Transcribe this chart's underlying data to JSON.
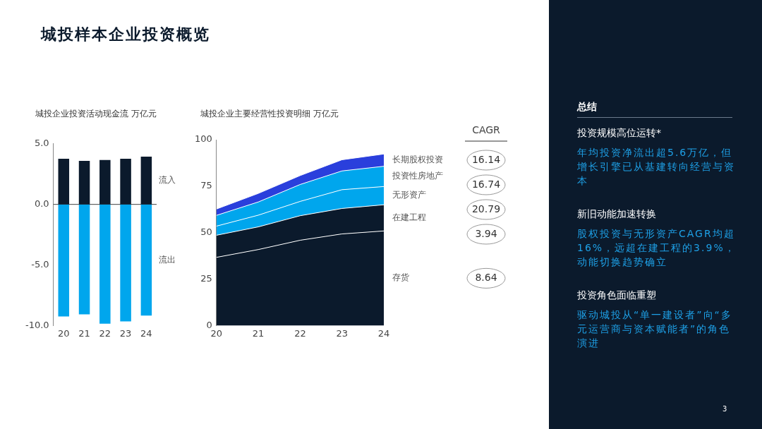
{
  "chart_data": [
    {
      "type": "other",
      "title": "城投样本企业投资概览"
    },
    {
      "type": "bar",
      "title": "城投企业投资活动现金流 万亿元",
      "stacked": true,
      "categories": [
        "20",
        "21",
        "22",
        "23",
        "24"
      ],
      "series": [
        {
          "name": "流入",
          "color": "#0b1a2c",
          "values": [
            3.77,
            3.59,
            3.67,
            3.77,
            3.94
          ]
        },
        {
          "name": "流出",
          "color": "#00a6ed",
          "values": [
            -9.25,
            -9.07,
            -9.84,
            -9.66,
            -9.17
          ]
        }
      ],
      "ref_lines": [
        {
          "axis": "y",
          "value": 0,
          "color": "#444444"
        }
      ],
      "ylim": [
        -10,
        5
      ],
      "yticks": [
        {
          "value": 5,
          "label": "5.0"
        },
        {
          "value": 0,
          "label": "0.0"
        },
        {
          "value": -5,
          "label": "-5.0"
        },
        {
          "value": -10,
          "label": "-10.0"
        }
      ],
      "grid": false,
      "legend": false
    },
    {
      "type": "area",
      "title": "城投企业主要经营性投资明细 万亿元",
      "stacked": true,
      "categories": [
        "20",
        "21",
        "22",
        "23",
        "24"
      ],
      "series": [
        {
          "name": "存货",
          "color": "#0b1a2c",
          "values": [
            36.7,
            40.9,
            45.9,
            49.3,
            50.9
          ]
        },
        {
          "name": "在建工程",
          "color": "#0b1a2c",
          "values": [
            11.9,
            12.2,
            13.2,
            13.7,
            14.1
          ]
        },
        {
          "name": "无形资产",
          "color": "#00a6ed",
          "values": [
            4.9,
            6.3,
            7.7,
            10.1,
            9.8
          ]
        },
        {
          "name": "投资性房地产",
          "color": "#00a6ed",
          "values": [
            5.8,
            7.1,
            9.1,
            10.1,
            10.9
          ]
        },
        {
          "name": "长期股权投资",
          "color": "#2a3fdc",
          "values": [
            3.4,
            4.6,
            4.8,
            6.0,
            6.6
          ]
        }
      ],
      "ylim": [
        0,
        100
      ],
      "yticks": [
        0,
        25,
        50,
        75,
        100
      ],
      "grid": false,
      "legend": false,
      "marker": "none",
      "annotations": [
        "CAGR",
        "16.14",
        "16.74",
        "20.79",
        "3.94",
        "8.64"
      ]
    },
    {
      "type": "other",
      "title": "总结",
      "annotations": [
        "投资规模高位运转*",
        "年均投资净流出超5.6万亿，但增长引擎已从基建转向经营与资本",
        "新旧动能加速转换",
        "股权投资与无形资产CAGR均超16%，远超在建工程的3.9%，动能切换趋势确立",
        "投资角色面临重塑",
        "驱动城投从“单一建设者”向“多元运营商与资本赋能者”的角色演进",
        "3"
      ]
    }
  ]
}
